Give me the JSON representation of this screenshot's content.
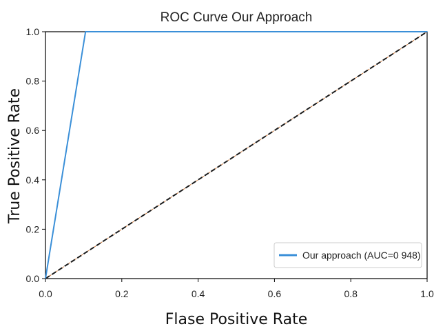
{
  "chart_data": {
    "type": "line",
    "title": "ROC Curve Our Approach",
    "xlabel": "Flase Positive Rate",
    "ylabel": "True Positive Rate",
    "xlim": [
      0.0,
      1.0
    ],
    "ylim": [
      0.0,
      1.0
    ],
    "xticks": [
      "0.0",
      "0.2",
      "0.4",
      "0.6",
      "0.8",
      "1.0"
    ],
    "yticks": [
      "0.0",
      "0.2",
      "0.4",
      "0.6",
      "0.8",
      "1.0"
    ],
    "grid": false,
    "legend_position": "lower-right",
    "series": [
      {
        "name": "Our approach (AUC=0 948)",
        "color": "#3a8fd8",
        "style": "solid",
        "x": [
          0.0,
          0.105,
          1.0
        ],
        "y": [
          0.0,
          1.0,
          1.0
        ]
      },
      {
        "color": "#1a1a1a",
        "accent_color": "#c8763a",
        "style": "dashed",
        "x": [
          0.0,
          1.0
        ],
        "y": [
          0.0,
          1.0
        ]
      }
    ]
  }
}
